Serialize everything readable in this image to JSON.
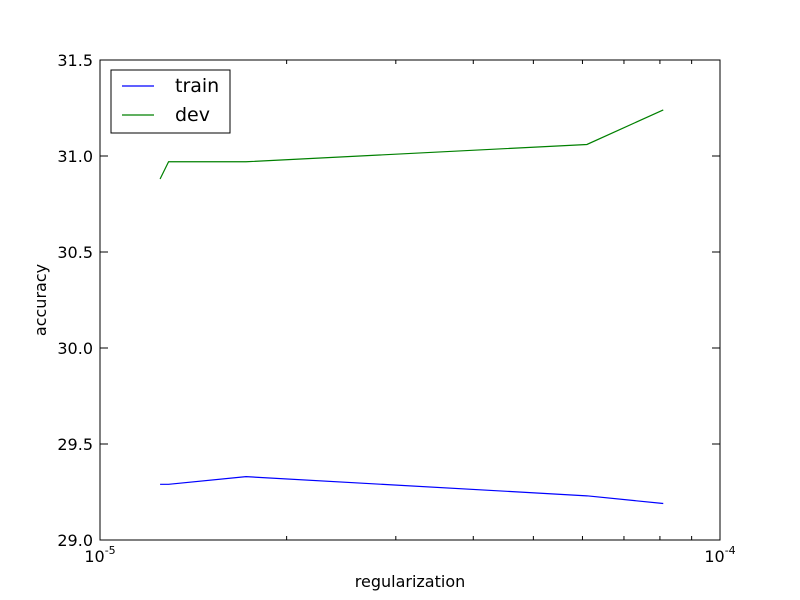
{
  "chart_data": {
    "type": "line",
    "xscale": "log",
    "xlabel": "regularization",
    "ylabel": "accuracy",
    "xlim": [
      1e-05,
      0.0001
    ],
    "ylim": [
      29.0,
      31.5
    ],
    "xticks": [
      {
        "value": 1e-05,
        "base": "10",
        "exp": "-5"
      },
      {
        "value": 0.0001,
        "base": "10",
        "exp": "-4"
      }
    ],
    "yticks": [
      {
        "value": 29.0,
        "label": "29.0"
      },
      {
        "value": 29.5,
        "label": "29.5"
      },
      {
        "value": 30.0,
        "label": "30.0"
      },
      {
        "value": 30.5,
        "label": "30.5"
      },
      {
        "value": 31.0,
        "label": "31.0"
      },
      {
        "value": 31.5,
        "label": "31.5"
      }
    ],
    "grid": false,
    "legend_position": "top-left",
    "series": [
      {
        "name": "train",
        "color": "#0000ff",
        "x": [
          1.25e-05,
          1.29e-05,
          1.72e-05,
          6.1e-05,
          8.1e-05
        ],
        "y": [
          29.29,
          29.29,
          29.33,
          29.23,
          29.19
        ]
      },
      {
        "name": "dev",
        "color": "#008000",
        "x": [
          1.25e-05,
          1.29e-05,
          1.72e-05,
          6.1e-05,
          8.1e-05
        ],
        "y": [
          30.88,
          30.97,
          30.97,
          31.06,
          31.24
        ]
      }
    ]
  }
}
